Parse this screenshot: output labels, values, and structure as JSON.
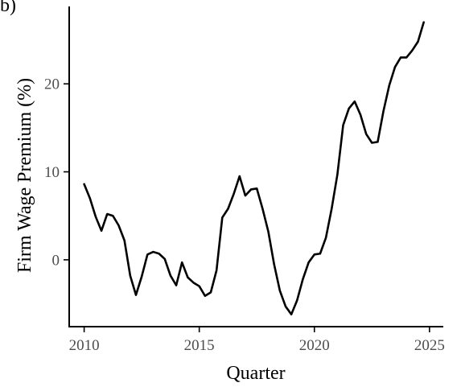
{
  "panel_tag": "b)",
  "chart_data": {
    "type": "line",
    "title": "",
    "xlabel": "Quarter",
    "ylabel": "Firm Wage Premium (%)",
    "xlim": [
      2009.35,
      2025.6
    ],
    "ylim": [
      -7.6,
      28.8
    ],
    "x_ticks": [
      2010,
      2015,
      2020,
      2025
    ],
    "x_tick_labels": [
      "2010",
      "2015",
      "2020",
      "2025"
    ],
    "y_ticks": [
      0,
      10,
      20
    ],
    "y_tick_labels": [
      "0",
      "10",
      "20"
    ],
    "grid": false,
    "legend": "none",
    "line_color": "#000000",
    "x": [
      2010.0,
      2010.25,
      2010.5,
      2010.75,
      2011.0,
      2011.25,
      2011.5,
      2011.75,
      2012.0,
      2012.25,
      2012.5,
      2012.75,
      2013.0,
      2013.25,
      2013.5,
      2013.75,
      2014.0,
      2014.25,
      2014.5,
      2014.75,
      2015.0,
      2015.25,
      2015.5,
      2015.75,
      2016.0,
      2016.25,
      2016.5,
      2016.75,
      2017.0,
      2017.25,
      2017.5,
      2017.75,
      2018.0,
      2018.25,
      2018.5,
      2018.75,
      2019.0,
      2019.25,
      2019.5,
      2019.75,
      2020.0,
      2020.25,
      2020.5,
      2020.75,
      2021.0,
      2021.25,
      2021.5,
      2021.75,
      2022.0,
      2022.25,
      2022.5,
      2022.75,
      2023.0,
      2023.25,
      2023.5,
      2023.75,
      2024.0,
      2024.25,
      2024.5,
      2024.75
    ],
    "y": [
      8.6,
      7.0,
      4.9,
      3.3,
      5.2,
      5.0,
      3.9,
      2.2,
      -1.8,
      -4.0,
      -1.9,
      0.6,
      0.9,
      0.7,
      0.1,
      -1.8,
      -2.9,
      -0.3,
      -2.0,
      -2.6,
      -3.0,
      -4.1,
      -3.7,
      -1.2,
      4.8,
      5.8,
      7.5,
      9.5,
      7.3,
      8.0,
      8.1,
      5.8,
      3.2,
      -0.5,
      -3.5,
      -5.3,
      -6.2,
      -4.6,
      -2.2,
      -0.3,
      0.6,
      0.7,
      2.5,
      5.8,
      9.7,
      15.3,
      17.2,
      18.0,
      16.5,
      14.3,
      13.3,
      13.4,
      16.9,
      19.8,
      21.9,
      23.0,
      23.0,
      23.8,
      24.8,
      27.0
    ]
  }
}
